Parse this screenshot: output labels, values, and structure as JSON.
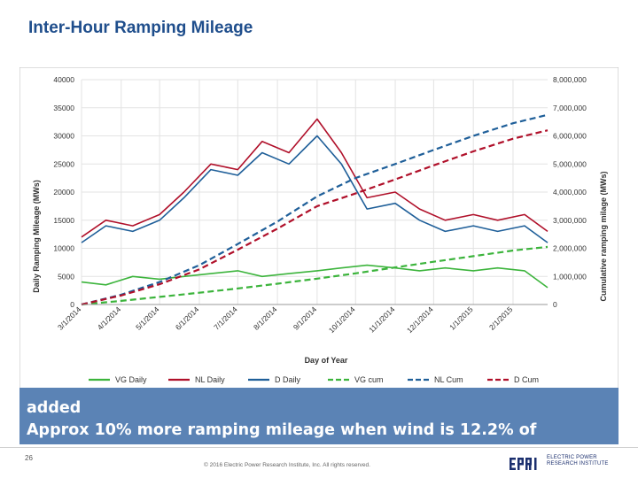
{
  "slide": {
    "title": "Inter-Hour Ramping Mileage",
    "bullets": [
      "added",
      "Approx 10% more ramping mileage when wind is 12.2% of"
    ],
    "page_number": "26",
    "copyright": "© 2016 Electric Power Research Institute, Inc. All rights reserved.",
    "logo_text": [
      "ELECTRIC POWER",
      "RESEARCH INSTITUTE"
    ]
  },
  "chart_data": {
    "type": "line",
    "xlabel": "Day of Year",
    "ylabel": "Daily Ramping Mileage (MWs)",
    "y2label": "Cumulative ramping milage (MWs)",
    "ylim": [
      0,
      40000
    ],
    "y2lim": [
      0,
      8000000
    ],
    "yticks": [
      "0",
      "5000",
      "10000",
      "15000",
      "20000",
      "25000",
      "30000",
      "35000",
      "40000"
    ],
    "y2ticks": [
      "0",
      "1,000,000",
      "2,000,000",
      "3,000,000",
      "4,000,000",
      "5,000,000",
      "6,000,000",
      "7,000,000",
      "8,000,000"
    ],
    "xticks": [
      "3/1/2014",
      "4/1/2014",
      "5/1/2014",
      "6/1/2014",
      "7/1/2014",
      "8/1/2014",
      "9/1/2014",
      "10/1/2014",
      "11/1/2014",
      "12/1/2014",
      "1/1/2015",
      "2/1/2015"
    ],
    "xrange": [
      "3/1/2014",
      "2/28/2015"
    ],
    "grid": true,
    "legend_position": "bottom",
    "series": [
      {
        "name": "VG Daily",
        "axis": "left",
        "color": "#3cb43c",
        "dash": "solid",
        "x": [
          "3/1/2014",
          "3/20/2014",
          "4/10/2014",
          "5/1/2014",
          "5/20/2014",
          "6/10/2014",
          "7/1/2014",
          "7/20/2014",
          "8/10/2014",
          "9/1/2014",
          "9/20/2014",
          "10/10/2014",
          "11/1/2014",
          "11/20/2014",
          "12/10/2014",
          "1/1/2015",
          "1/20/2015",
          "2/10/2015",
          "2/28/2015"
        ],
        "y": [
          4000,
          3500,
          5000,
          4500,
          5000,
          5500,
          6000,
          5000,
          5500,
          6000,
          6500,
          7000,
          6500,
          6000,
          6500,
          6000,
          6500,
          6000,
          3000
        ]
      },
      {
        "name": "NL Daily",
        "axis": "left",
        "color": "#b0102a",
        "dash": "solid",
        "x": [
          "3/1/2014",
          "3/20/2014",
          "4/10/2014",
          "5/1/2014",
          "5/20/2014",
          "6/10/2014",
          "7/1/2014",
          "7/20/2014",
          "8/10/2014",
          "9/1/2014",
          "9/20/2014",
          "10/10/2014",
          "11/1/2014",
          "11/20/2014",
          "12/10/2014",
          "1/1/2015",
          "1/20/2015",
          "2/10/2015",
          "2/28/2015"
        ],
        "y": [
          12000,
          15000,
          14000,
          16000,
          20000,
          25000,
          24000,
          29000,
          27000,
          33000,
          27000,
          19000,
          20000,
          17000,
          15000,
          16000,
          15000,
          16000,
          13000
        ]
      },
      {
        "name": "D Daily",
        "axis": "left",
        "color": "#1f5f99",
        "dash": "solid",
        "x": [
          "3/1/2014",
          "3/20/2014",
          "4/10/2014",
          "5/1/2014",
          "5/20/2014",
          "6/10/2014",
          "7/1/2014",
          "7/20/2014",
          "8/10/2014",
          "9/1/2014",
          "9/20/2014",
          "10/10/2014",
          "11/1/2014",
          "11/20/2014",
          "12/10/2014",
          "1/1/2015",
          "1/20/2015",
          "2/10/2015",
          "2/28/2015"
        ],
        "y": [
          11000,
          14000,
          13000,
          15000,
          19000,
          24000,
          23000,
          27000,
          25000,
          30000,
          25000,
          17000,
          18000,
          15000,
          13000,
          14000,
          13000,
          14000,
          11000
        ]
      },
      {
        "name": "VG cum",
        "axis": "right",
        "color": "#3cb43c",
        "dash": "dashed",
        "x": [
          "3/1/2014",
          "4/1/2014",
          "5/1/2014",
          "6/1/2014",
          "7/1/2014",
          "8/1/2014",
          "9/1/2014",
          "10/1/2014",
          "11/1/2014",
          "12/1/2014",
          "1/1/2015",
          "2/1/2015",
          "2/28/2015"
        ],
        "y": [
          0,
          130000,
          270000,
          420000,
          570000,
          740000,
          920000,
          1110000,
          1320000,
          1520000,
          1720000,
          1920000,
          2050000
        ]
      },
      {
        "name": "NL Cum",
        "axis": "right",
        "color": "#1f5f99",
        "dash": "dashed",
        "x": [
          "3/1/2014",
          "4/1/2014",
          "5/1/2014",
          "6/1/2014",
          "7/1/2014",
          "8/1/2014",
          "9/1/2014",
          "10/1/2014",
          "11/1/2014",
          "12/1/2014",
          "1/1/2015",
          "2/1/2015",
          "2/28/2015"
        ],
        "y": [
          0,
          350000,
          800000,
          1400000,
          2150000,
          2950000,
          3850000,
          4500000,
          5000000,
          5500000,
          6000000,
          6450000,
          6750000
        ]
      },
      {
        "name": "D Cum",
        "axis": "right",
        "color": "#b0102a",
        "dash": "dashed",
        "x": [
          "3/1/2014",
          "4/1/2014",
          "5/1/2014",
          "6/1/2014",
          "7/1/2014",
          "8/1/2014",
          "9/1/2014",
          "10/1/2014",
          "11/1/2014",
          "12/1/2014",
          "1/1/2015",
          "2/1/2015",
          "2/28/2015"
        ],
        "y": [
          0,
          320000,
          720000,
          1250000,
          1950000,
          2700000,
          3500000,
          3950000,
          4450000,
          4950000,
          5450000,
          5900000,
          6200000
        ]
      }
    ]
  }
}
